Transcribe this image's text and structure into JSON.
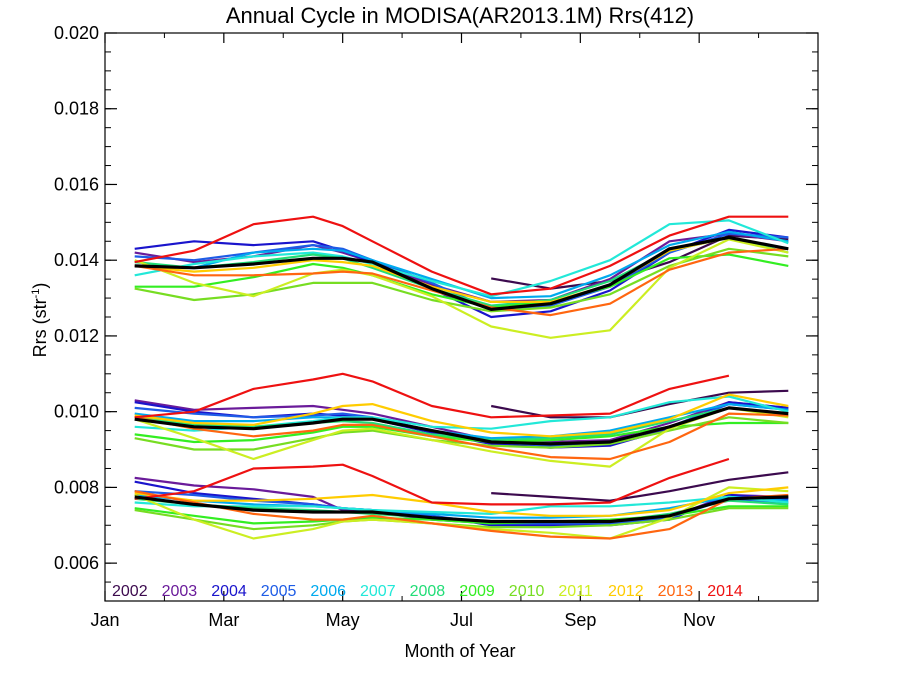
{
  "chart_data": {
    "type": "line",
    "title": "Annual Cycle in MODISA(AR2013.1M) Rrs(412)",
    "xlabel": "Month of Year",
    "ylabel_main": "Rrs (str",
    "ylabel_sup": "-1",
    "ylabel_close": ")",
    "xlim": [
      1,
      13
    ],
    "ylim": [
      0.005,
      0.02
    ],
    "x_ticks": [
      {
        "x": 1,
        "label": "Jan"
      },
      {
        "x": 3,
        "label": "Mar"
      },
      {
        "x": 5,
        "label": "May"
      },
      {
        "x": 7,
        "label": "Jul"
      },
      {
        "x": 9,
        "label": "Sep"
      },
      {
        "x": 11,
        "label": "Nov"
      }
    ],
    "y_ticks": [
      {
        "y": 0.006,
        "label": "0.006"
      },
      {
        "y": 0.008,
        "label": "0.008"
      },
      {
        "y": 0.01,
        "label": "0.010"
      },
      {
        "y": 0.012,
        "label": "0.012"
      },
      {
        "y": 0.014,
        "label": "0.014"
      },
      {
        "y": 0.016,
        "label": "0.016"
      },
      {
        "y": 0.018,
        "label": "0.018"
      },
      {
        "y": 0.02,
        "label": "0.020"
      }
    ],
    "x": [
      1.5,
      2.5,
      3.5,
      4.5,
      5.0,
      5.5,
      6.5,
      7.5,
      8.5,
      9.5,
      10.5,
      11.5,
      12.5
    ],
    "legend_placement": "bottom-left",
    "grid": false,
    "mean_color": "#000000",
    "series": [
      {
        "name": "2002",
        "color": "#3c0a4e",
        "upper": [
          null,
          null,
          null,
          null,
          null,
          null,
          null,
          0.01352,
          0.01325,
          0.01345,
          0.01395,
          0.01465,
          0.01455
        ],
        "middle": [
          null,
          null,
          null,
          null,
          null,
          null,
          null,
          0.01015,
          0.00985,
          0.00985,
          0.0102,
          0.0105,
          0.01055
        ],
        "lower": [
          null,
          null,
          null,
          null,
          null,
          null,
          null,
          0.00785,
          0.00775,
          0.00765,
          0.0079,
          0.0082,
          0.0084
        ]
      },
      {
        "name": "2003",
        "color": "#6a1b9a",
        "upper": [
          0.0142,
          0.01395,
          0.0141,
          0.0144,
          0.0142,
          0.01395,
          0.01335,
          0.0129,
          0.01295,
          0.0135,
          0.0145,
          0.0147,
          0.0145
        ],
        "middle": [
          0.0103,
          0.01005,
          0.0101,
          0.01015,
          0.01005,
          0.00995,
          0.0096,
          0.00925,
          0.0092,
          0.00925,
          0.0097,
          0.01025,
          0.0101
        ],
        "lower": [
          0.00825,
          0.00805,
          0.00795,
          0.00775,
          0.0074,
          0.00735,
          0.00715,
          0.00705,
          0.00705,
          0.00705,
          0.0072,
          0.0078,
          0.00775
        ]
      },
      {
        "name": "2004",
        "color": "#1a14cc",
        "upper": [
          0.0143,
          0.0145,
          0.0144,
          0.0145,
          0.01425,
          0.01395,
          0.01325,
          0.0125,
          0.01265,
          0.0132,
          0.0142,
          0.0148,
          0.0146
        ],
        "middle": [
          0.01025,
          0.01,
          0.00985,
          0.00995,
          0.0099,
          0.0098,
          0.00945,
          0.00915,
          0.00905,
          0.0091,
          0.00955,
          0.01025,
          0.0101
        ],
        "lower": [
          0.00815,
          0.00785,
          0.0077,
          0.00755,
          0.00745,
          0.0074,
          0.00725,
          0.007,
          0.007,
          0.007,
          0.00715,
          0.0078,
          0.0077
        ]
      },
      {
        "name": "2005",
        "color": "#1e5ce6",
        "upper": [
          0.0141,
          0.014,
          0.0142,
          0.0144,
          0.0143,
          0.014,
          0.0134,
          0.0127,
          0.0128,
          0.0133,
          0.0142,
          0.0147,
          0.0146
        ],
        "middle": [
          0.0101,
          0.00995,
          0.00985,
          0.0099,
          0.00995,
          0.00985,
          0.0095,
          0.0092,
          0.0091,
          0.0092,
          0.0096,
          0.0102,
          0.01005
        ],
        "lower": [
          0.0079,
          0.0078,
          0.00765,
          0.00755,
          0.00745,
          0.0074,
          0.00725,
          0.00705,
          0.00705,
          0.00705,
          0.0072,
          0.0077,
          0.0076
        ]
      },
      {
        "name": "2006",
        "color": "#00aaee",
        "upper": [
          0.01385,
          0.0138,
          0.0142,
          0.0143,
          0.01425,
          0.014,
          0.0135,
          0.013,
          0.01305,
          0.0136,
          0.0144,
          0.01475,
          0.0145
        ],
        "middle": [
          0.00995,
          0.00975,
          0.00975,
          0.00985,
          0.00985,
          0.0098,
          0.0095,
          0.0093,
          0.00935,
          0.0095,
          0.00985,
          0.0102,
          0.01005
        ],
        "lower": [
          0.0078,
          0.00765,
          0.00755,
          0.0075,
          0.00745,
          0.0074,
          0.0073,
          0.0072,
          0.0072,
          0.00725,
          0.00745,
          0.00775,
          0.00765
        ]
      },
      {
        "name": "2007",
        "color": "#22e8d8",
        "upper": [
          0.0136,
          0.0139,
          0.0141,
          0.0142,
          0.0141,
          0.0139,
          0.01345,
          0.01305,
          0.01345,
          0.014,
          0.01495,
          0.01505,
          0.01445
        ],
        "middle": [
          0.0096,
          0.0095,
          0.0096,
          0.00975,
          0.00985,
          0.00985,
          0.0096,
          0.00955,
          0.00975,
          0.00985,
          0.01025,
          0.0104,
          0.01
        ],
        "lower": [
          0.0076,
          0.0075,
          0.0075,
          0.0075,
          0.00745,
          0.0074,
          0.00735,
          0.0073,
          0.0075,
          0.0075,
          0.0076,
          0.00775,
          0.0076
        ]
      },
      {
        "name": "2008",
        "color": "#22dd77",
        "upper": [
          0.01395,
          0.0138,
          0.01395,
          0.01415,
          0.01405,
          0.0138,
          0.01325,
          0.0128,
          0.01295,
          0.01345,
          0.01425,
          0.0146,
          0.0142
        ],
        "middle": [
          0.00985,
          0.00965,
          0.0096,
          0.0097,
          0.00975,
          0.0097,
          0.0094,
          0.00925,
          0.0093,
          0.0094,
          0.00975,
          0.0101,
          0.0099
        ],
        "lower": [
          0.0077,
          0.00755,
          0.00745,
          0.0074,
          0.00735,
          0.0073,
          0.0072,
          0.0071,
          0.0071,
          0.0071,
          0.0073,
          0.00765,
          0.00755
        ]
      },
      {
        "name": "2009",
        "color": "#33ee22",
        "upper": [
          0.0133,
          0.0133,
          0.01355,
          0.0139,
          0.0138,
          0.0136,
          0.0131,
          0.01275,
          0.0129,
          0.0133,
          0.01405,
          0.01415,
          0.01385
        ],
        "middle": [
          0.0094,
          0.0092,
          0.00925,
          0.00945,
          0.0096,
          0.0096,
          0.00935,
          0.0092,
          0.00925,
          0.00935,
          0.0096,
          0.0097,
          0.0097
        ],
        "lower": [
          0.00745,
          0.00725,
          0.00705,
          0.0071,
          0.00715,
          0.0072,
          0.00715,
          0.00705,
          0.0071,
          0.00715,
          0.00725,
          0.0075,
          0.0075
        ]
      },
      {
        "name": "2010",
        "color": "#77dd22",
        "upper": [
          0.01325,
          0.01295,
          0.0131,
          0.0134,
          0.0134,
          0.0134,
          0.01295,
          0.01265,
          0.01275,
          0.0131,
          0.01385,
          0.0143,
          0.0141
        ],
        "middle": [
          0.0093,
          0.009,
          0.009,
          0.0093,
          0.00945,
          0.0095,
          0.00925,
          0.0091,
          0.00905,
          0.00915,
          0.0095,
          0.00985,
          0.0097
        ],
        "lower": [
          0.0074,
          0.00715,
          0.0069,
          0.007,
          0.0071,
          0.00715,
          0.00705,
          0.00695,
          0.00695,
          0.007,
          0.00715,
          0.00745,
          0.00745
        ]
      },
      {
        "name": "2011",
        "color": "#ccee22",
        "upper": [
          0.014,
          0.0134,
          0.01305,
          0.01365,
          0.01375,
          0.0136,
          0.01305,
          0.01225,
          0.01195,
          0.01215,
          0.0138,
          0.01455,
          0.0142
        ],
        "middle": [
          0.0098,
          0.0093,
          0.00875,
          0.00925,
          0.0095,
          0.00955,
          0.00925,
          0.00895,
          0.0087,
          0.00855,
          0.00955,
          0.0101,
          0.00985
        ],
        "lower": [
          0.0078,
          0.00715,
          0.00665,
          0.0069,
          0.0071,
          0.00715,
          0.00705,
          0.0069,
          0.0068,
          0.00665,
          0.0072,
          0.008,
          0.0079
        ]
      },
      {
        "name": "2012",
        "color": "#ffcc00",
        "upper": [
          0.01385,
          0.0137,
          0.0138,
          0.014,
          0.01395,
          0.01385,
          0.0133,
          0.0129,
          0.0129,
          0.01335,
          0.01425,
          0.0146,
          0.0143
        ],
        "middle": [
          0.0099,
          0.0097,
          0.00965,
          0.00995,
          0.01015,
          0.0102,
          0.00975,
          0.00945,
          0.00935,
          0.00945,
          0.0098,
          0.01045,
          0.01015
        ],
        "lower": [
          0.00785,
          0.00765,
          0.00765,
          0.0077,
          0.00775,
          0.0078,
          0.0076,
          0.00735,
          0.00725,
          0.00725,
          0.0074,
          0.00785,
          0.008
        ]
      },
      {
        "name": "2013",
        "color": "#ff6610",
        "upper": [
          0.01385,
          0.0136,
          0.0136,
          0.01365,
          0.0137,
          0.01365,
          0.0132,
          0.01275,
          0.01255,
          0.01285,
          0.01375,
          0.0142,
          0.0143
        ],
        "middle": [
          0.00985,
          0.00955,
          0.00935,
          0.0095,
          0.00965,
          0.00965,
          0.00935,
          0.00905,
          0.0088,
          0.00875,
          0.0092,
          0.00995,
          0.0099
        ],
        "lower": [
          0.0079,
          0.0076,
          0.0073,
          0.00715,
          0.00715,
          0.00725,
          0.00705,
          0.00685,
          0.0067,
          0.00665,
          0.0069,
          0.0077,
          0.0078
        ]
      },
      {
        "name": "2014",
        "color": "#ee1111",
        "upper": [
          0.01395,
          0.01425,
          0.01495,
          0.01515,
          0.0149,
          0.0145,
          0.0137,
          0.0131,
          0.01325,
          0.01385,
          0.01465,
          0.01515,
          0.01515
        ],
        "middle": [
          0.00985,
          0.01,
          0.0106,
          0.01085,
          0.011,
          0.0108,
          0.01015,
          0.00985,
          0.0099,
          0.00995,
          0.0106,
          0.01095,
          null
        ],
        "lower": [
          0.0077,
          0.0079,
          0.0085,
          0.00855,
          0.0086,
          0.0083,
          0.0076,
          0.00755,
          0.00755,
          0.0076,
          0.00825,
          0.00875,
          null
        ]
      }
    ],
    "mean": {
      "upper": [
        0.01385,
        0.0138,
        0.0139,
        0.01405,
        0.01405,
        0.01395,
        0.01325,
        0.0127,
        0.01285,
        0.01335,
        0.0143,
        0.0146,
        0.0143
      ],
      "middle": [
        0.0098,
        0.0096,
        0.00955,
        0.0097,
        0.0098,
        0.0098,
        0.0095,
        0.0092,
        0.00915,
        0.0092,
        0.0096,
        0.0101,
        0.00995
      ],
      "lower": [
        0.00775,
        0.00755,
        0.0074,
        0.00735,
        0.00735,
        0.00735,
        0.0072,
        0.0071,
        0.0071,
        0.0071,
        0.00725,
        0.0077,
        0.00775
      ]
    }
  }
}
